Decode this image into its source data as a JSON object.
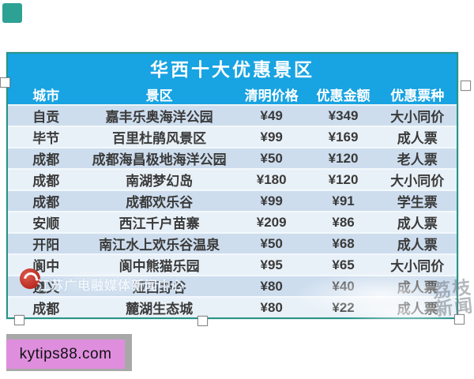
{
  "title": "华西十大优惠景区",
  "table": {
    "headers": [
      "城市",
      "景区",
      "清明价格",
      "优惠金额",
      "优惠票种"
    ],
    "rows": [
      [
        "自贡",
        "嘉丰乐奥海洋公园",
        "¥49",
        "¥349",
        "大小同价"
      ],
      [
        "毕节",
        "百里杜鹃风景区",
        "¥99",
        "¥169",
        "成人票"
      ],
      [
        "成都",
        "成都海昌极地海洋公园",
        "¥50",
        "¥120",
        "老人票"
      ],
      [
        "成都",
        "南湖梦幻岛",
        "¥180",
        "¥120",
        "大小同价"
      ],
      [
        "成都",
        "成都欢乐谷",
        "¥99",
        "¥91",
        "学生票"
      ],
      [
        "安顺",
        "西江千户苗寨",
        "¥209",
        "¥86",
        "成人票"
      ],
      [
        "开阳",
        "南江水上欢乐谷温泉",
        "¥50",
        "¥68",
        "成人票"
      ],
      [
        "阆中",
        "阆中熊猫乐园",
        "¥95",
        "¥65",
        "大小同价"
      ],
      [
        "遵义",
        "娅西野谷",
        "¥80",
        "¥40",
        "成人票"
      ],
      [
        "成都",
        "麓湖生态城",
        "¥80",
        "¥22",
        "成人票"
      ]
    ]
  },
  "watermarks": {
    "media_watermark": "江苏广电融媒体新闻中心",
    "corner_watermark": "荔枝新闻",
    "site_watermark": "kytips88.com"
  },
  "colors": {
    "header_blue": "#18a3e2",
    "border_teal": "#26948a",
    "row_odd": "#cdddee",
    "row_even": "#e9f1f8",
    "site_box_pink": "#df8ede",
    "site_box_gray": "#a8a8a8",
    "corner_marker_teal": "#2ea195"
  },
  "chart_data": {
    "type": "table",
    "title": "华西十大优惠景区",
    "columns": [
      "城市",
      "景区",
      "清明价格",
      "优惠金额",
      "优惠票种"
    ],
    "rows": [
      [
        "自贡",
        "嘉丰乐奥海洋公园",
        "¥49",
        "¥349",
        "大小同价"
      ],
      [
        "毕节",
        "百里杜鹃风景区",
        "¥99",
        "¥169",
        "成人票"
      ],
      [
        "成都",
        "成都海昌极地海洋公园",
        "¥50",
        "¥120",
        "老人票"
      ],
      [
        "成都",
        "南湖梦幻岛",
        "¥180",
        "¥120",
        "大小同价"
      ],
      [
        "成都",
        "成都欢乐谷",
        "¥99",
        "¥91",
        "学生票"
      ],
      [
        "安顺",
        "西江千户苗寨",
        "¥209",
        "¥86",
        "成人票"
      ],
      [
        "开阳",
        "南江水上欢乐谷温泉",
        "¥50",
        "¥68",
        "成人票"
      ],
      [
        "阆中",
        "阆中熊猫乐园",
        "¥95",
        "¥65",
        "大小同价"
      ],
      [
        "遵义",
        "娅西野谷",
        "¥80",
        "¥40",
        "成人票"
      ],
      [
        "成都",
        "麓湖生态城",
        "¥80",
        "¥22",
        "成人票"
      ]
    ]
  }
}
